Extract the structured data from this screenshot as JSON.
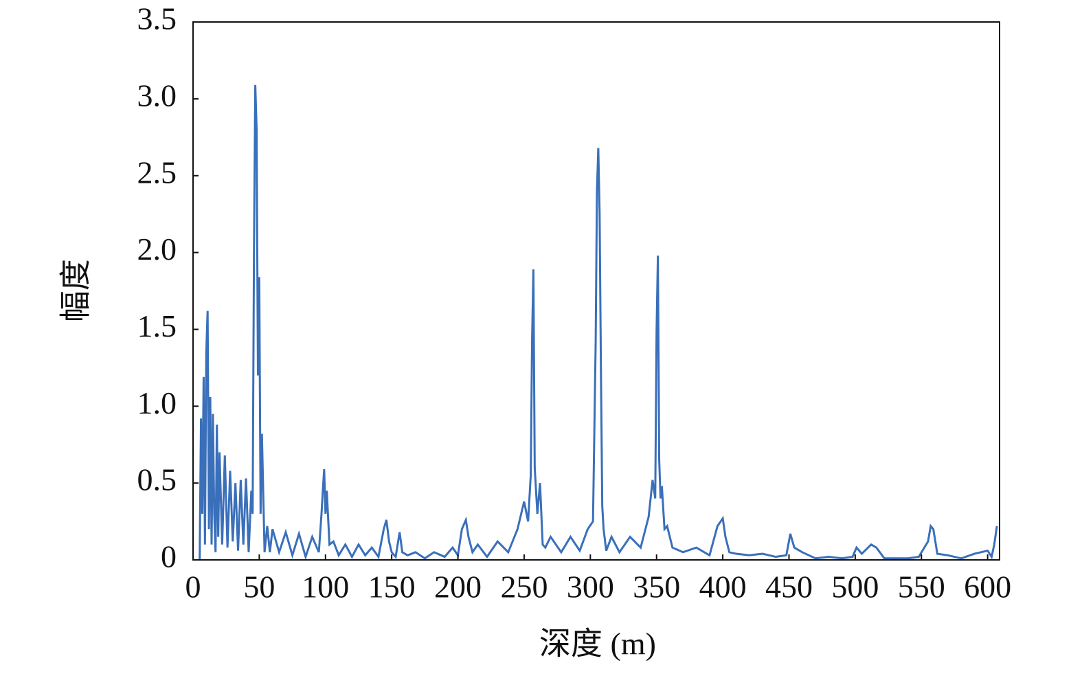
{
  "chart_data": {
    "type": "line",
    "x_label": "深度 (m)",
    "y_label": "幅度",
    "xlim": [
      0,
      609
    ],
    "ylim": [
      0,
      3.5
    ],
    "xticks": [
      0,
      50,
      100,
      150,
      200,
      250,
      300,
      350,
      400,
      450,
      500,
      550,
      600
    ],
    "yticks": [
      0,
      0.5,
      {
        "value": 1,
        "label": "1.0"
      },
      1.5,
      {
        "value": 2,
        "label": "2.0"
      },
      2.5,
      {
        "value": 3,
        "label": "3.0"
      },
      3.5
    ],
    "grid": false,
    "x": [
      5,
      6,
      7,
      8,
      9,
      10,
      11,
      12,
      13,
      14,
      15,
      16,
      17,
      18,
      19,
      20,
      22,
      24,
      26,
      28,
      30,
      32,
      34,
      36,
      38,
      40,
      42,
      44,
      45,
      46,
      47,
      48,
      49,
      50,
      51,
      52,
      54,
      56,
      58,
      60,
      65,
      70,
      75,
      80,
      85,
      90,
      95,
      97,
      98,
      99,
      100,
      101,
      103,
      106,
      110,
      115,
      120,
      125,
      130,
      135,
      140,
      144,
      146,
      148,
      150,
      153,
      156,
      158,
      162,
      168,
      175,
      182,
      190,
      196,
      200,
      203,
      206,
      208,
      211,
      215,
      222,
      230,
      238,
      245,
      250,
      253,
      255,
      256,
      257,
      258,
      259,
      260,
      262,
      264,
      266,
      270,
      278,
      285,
      292,
      298,
      302,
      304,
      305,
      306,
      307,
      308,
      309,
      310,
      312,
      316,
      322,
      330,
      338,
      344,
      347,
      349,
      350,
      351,
      352,
      353,
      354,
      356,
      358,
      362,
      370,
      380,
      390,
      396,
      400,
      402,
      405,
      410,
      420,
      430,
      440,
      448,
      451,
      454,
      460,
      470,
      480,
      490,
      498,
      501,
      505,
      512,
      516,
      522,
      530,
      540,
      548,
      555,
      557,
      559,
      562,
      570,
      580,
      590,
      600,
      603,
      605,
      607
    ],
    "series": [
      {
        "name": "幅度",
        "color": "#3a6fba",
        "values": [
          0.0,
          0.92,
          0.3,
          1.19,
          0.1,
          1.35,
          1.62,
          0.2,
          1.06,
          0.1,
          0.95,
          0.3,
          0.05,
          0.88,
          0.15,
          0.7,
          0.1,
          0.68,
          0.08,
          0.58,
          0.12,
          0.5,
          0.06,
          0.52,
          0.1,
          0.53,
          0.05,
          0.45,
          0.3,
          2.0,
          3.09,
          2.8,
          1.2,
          1.84,
          0.3,
          0.82,
          0.05,
          0.22,
          0.05,
          0.2,
          0.05,
          0.18,
          0.03,
          0.17,
          0.02,
          0.15,
          0.05,
          0.3,
          0.45,
          0.59,
          0.3,
          0.45,
          0.1,
          0.12,
          0.03,
          0.1,
          0.02,
          0.1,
          0.03,
          0.08,
          0.02,
          0.2,
          0.26,
          0.12,
          0.05,
          0.02,
          0.18,
          0.05,
          0.03,
          0.05,
          0.01,
          0.05,
          0.02,
          0.08,
          0.03,
          0.2,
          0.26,
          0.15,
          0.05,
          0.1,
          0.02,
          0.12,
          0.05,
          0.2,
          0.38,
          0.25,
          0.55,
          1.42,
          1.89,
          0.6,
          0.45,
          0.3,
          0.5,
          0.1,
          0.08,
          0.15,
          0.05,
          0.15,
          0.06,
          0.2,
          0.25,
          1.4,
          2.4,
          2.68,
          2.25,
          1.23,
          0.35,
          0.2,
          0.06,
          0.15,
          0.05,
          0.15,
          0.08,
          0.28,
          0.52,
          0.4,
          1.48,
          1.98,
          0.65,
          0.4,
          0.48,
          0.2,
          0.22,
          0.08,
          0.05,
          0.08,
          0.03,
          0.22,
          0.27,
          0.15,
          0.05,
          0.04,
          0.03,
          0.04,
          0.02,
          0.03,
          0.17,
          0.08,
          0.05,
          0.01,
          0.02,
          0.01,
          0.02,
          0.08,
          0.04,
          0.1,
          0.08,
          0.01,
          0.01,
          0.01,
          0.02,
          0.12,
          0.22,
          0.2,
          0.04,
          0.03,
          0.01,
          0.04,
          0.06,
          0.02,
          0.1,
          0.22
        ]
      }
    ]
  }
}
